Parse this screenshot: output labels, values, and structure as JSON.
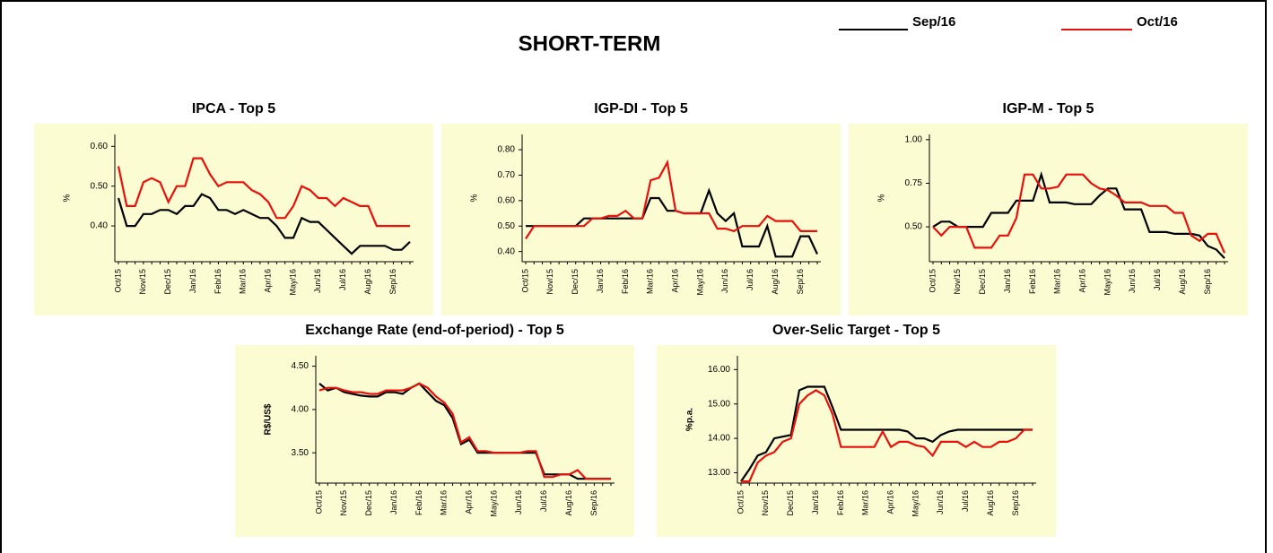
{
  "title": "SHORT-TERM",
  "chart_data": [
    {
      "type": "line",
      "title": "IPCA - Top 5",
      "ylabel": "%",
      "categories": [
        "Oct/15",
        null,
        null,
        "Nov/15",
        null,
        null,
        "Dec/15",
        null,
        null,
        "Jan/16",
        null,
        null,
        "Feb/16",
        null,
        null,
        "Mar/16",
        null,
        null,
        "Apr/16",
        null,
        null,
        "May/16",
        null,
        null,
        "Jun/16",
        null,
        null,
        "Jul/16",
        null,
        null,
        "Aug/16",
        null,
        null,
        "Sep/16",
        null,
        null
      ],
      "ylim": [
        0.31,
        0.63
      ],
      "yticks": [
        {
          "value": 0.4,
          "label": "0.40"
        },
        {
          "value": 0.5,
          "label": "0.50"
        },
        {
          "value": 0.6,
          "label": "0.60"
        }
      ],
      "series": [
        {
          "name": "Sep/16",
          "color": "#000000",
          "values": [
            0.47,
            0.4,
            0.4,
            0.43,
            0.43,
            0.44,
            0.44,
            0.43,
            0.45,
            0.45,
            0.48,
            0.47,
            0.44,
            0.44,
            0.43,
            0.44,
            0.43,
            0.42,
            0.42,
            0.4,
            0.37,
            0.37,
            0.42,
            0.41,
            0.41,
            0.39,
            0.37,
            0.35,
            0.33,
            0.35,
            0.35,
            0.35,
            0.35,
            0.34,
            0.34,
            0.36
          ]
        },
        {
          "name": "Oct/16",
          "color": "#e8100c",
          "values": [
            0.55,
            0.45,
            0.45,
            0.51,
            0.52,
            0.51,
            0.46,
            0.5,
            0.5,
            0.57,
            0.57,
            0.53,
            0.5,
            0.51,
            0.51,
            0.51,
            0.49,
            0.48,
            0.46,
            0.42,
            0.42,
            0.45,
            0.5,
            0.49,
            0.47,
            0.47,
            0.45,
            0.47,
            0.46,
            0.45,
            0.45,
            0.4,
            0.4,
            0.4,
            0.4,
            0.4
          ]
        }
      ]
    },
    {
      "type": "line",
      "title": "IGP-DI - Top 5",
      "ylabel": "%",
      "categories": [
        "Oct/15",
        null,
        null,
        "Nov/15",
        null,
        null,
        "Dec/15",
        null,
        null,
        "Jan/16",
        null,
        null,
        "Feb/16",
        null,
        null,
        "Mar/16",
        null,
        null,
        "Apr/16",
        null,
        null,
        "May/16",
        null,
        null,
        "Jun/16",
        null,
        null,
        "Jul/16",
        null,
        null,
        "Aug/16",
        null,
        null,
        "Sep/16",
        null,
        null
      ],
      "ylim": [
        0.36,
        0.86
      ],
      "yticks": [
        {
          "value": 0.4,
          "label": "0.40"
        },
        {
          "value": 0.5,
          "label": "0.50"
        },
        {
          "value": 0.6,
          "label": "0.60"
        },
        {
          "value": 0.7,
          "label": "0.70"
        },
        {
          "value": 0.8,
          "label": "0.80"
        }
      ],
      "series": [
        {
          "name": "Sep/16",
          "color": "#000000",
          "values": [
            0.5,
            0.5,
            0.5,
            0.5,
            0.5,
            0.5,
            0.5,
            0.53,
            0.53,
            0.53,
            0.53,
            0.53,
            0.53,
            0.53,
            0.53,
            0.61,
            0.61,
            0.56,
            0.56,
            0.55,
            0.55,
            0.55,
            0.64,
            0.55,
            0.52,
            0.55,
            0.42,
            0.42,
            0.42,
            0.5,
            0.38,
            0.38,
            0.38,
            0.46,
            0.46,
            0.39
          ]
        },
        {
          "name": "Oct/16",
          "color": "#e8100c",
          "values": [
            0.45,
            0.5,
            0.5,
            0.5,
            0.5,
            0.5,
            0.5,
            0.5,
            0.53,
            0.53,
            0.54,
            0.54,
            0.56,
            0.53,
            0.53,
            0.68,
            0.69,
            0.75,
            0.56,
            0.55,
            0.55,
            0.55,
            0.55,
            0.49,
            0.49,
            0.48,
            0.5,
            0.5,
            0.5,
            0.54,
            0.52,
            0.52,
            0.52,
            0.48,
            0.48,
            0.48
          ]
        }
      ]
    },
    {
      "type": "line",
      "title": "IGP-M - Top 5",
      "ylabel": "%",
      "categories": [
        "Oct/15",
        null,
        null,
        "Nov/15",
        null,
        null,
        "Dec/15",
        null,
        null,
        "Jan/16",
        null,
        null,
        "Feb/16",
        null,
        null,
        "Mar/16",
        null,
        null,
        "Apr/16",
        null,
        null,
        "May/16",
        null,
        null,
        "Jun/16",
        null,
        null,
        "Jul/16",
        null,
        null,
        "Aug/16",
        null,
        null,
        "Sep/16",
        null,
        null
      ],
      "ylim": [
        0.3,
        1.03
      ],
      "yticks": [
        {
          "value": 0.5,
          "label": "0.50"
        },
        {
          "value": 0.75,
          "label": "0.75"
        },
        {
          "value": 1.0,
          "label": "1.00"
        }
      ],
      "series": [
        {
          "name": "Sep/16",
          "color": "#000000",
          "values": [
            0.5,
            0.53,
            0.53,
            0.5,
            0.5,
            0.5,
            0.5,
            0.58,
            0.58,
            0.58,
            0.65,
            0.65,
            0.65,
            0.8,
            0.64,
            0.64,
            0.64,
            0.63,
            0.63,
            0.63,
            0.68,
            0.72,
            0.72,
            0.6,
            0.6,
            0.6,
            0.47,
            0.47,
            0.47,
            0.46,
            0.46,
            0.46,
            0.45,
            0.39,
            0.37,
            0.32
          ]
        },
        {
          "name": "Oct/16",
          "color": "#e8100c",
          "values": [
            0.5,
            0.45,
            0.5,
            0.5,
            0.5,
            0.38,
            0.38,
            0.38,
            0.45,
            0.45,
            0.55,
            0.8,
            0.8,
            0.72,
            0.72,
            0.73,
            0.8,
            0.8,
            0.8,
            0.75,
            0.72,
            0.71,
            0.68,
            0.64,
            0.64,
            0.64,
            0.62,
            0.62,
            0.62,
            0.58,
            0.58,
            0.45,
            0.42,
            0.46,
            0.46,
            0.35
          ]
        }
      ]
    },
    {
      "type": "line",
      "title": "Exchange Rate (end-of-period) - Top 5",
      "ylabel": "R$/US$",
      "categories": [
        "Oct/15",
        null,
        null,
        "Nov/15",
        null,
        null,
        "Dec/15",
        null,
        null,
        "Jan/16",
        null,
        null,
        "Feb/16",
        null,
        null,
        "Mar/16",
        null,
        null,
        "Apr/16",
        null,
        null,
        "May/16",
        null,
        null,
        "Jun/16",
        null,
        null,
        "Jul/16",
        null,
        null,
        "Aug/16",
        null,
        null,
        "Sep/16",
        null,
        null
      ],
      "ylim": [
        3.15,
        4.62
      ],
      "yticks": [
        {
          "value": 3.5,
          "label": "3.50"
        },
        {
          "value": 4.0,
          "label": "4.00"
        },
        {
          "value": 4.5,
          "label": "4.50"
        }
      ],
      "series": [
        {
          "name": "Sep/16",
          "color": "#000000",
          "values": [
            4.3,
            4.22,
            4.25,
            4.2,
            4.18,
            4.16,
            4.15,
            4.15,
            4.2,
            4.2,
            4.18,
            4.25,
            4.3,
            4.2,
            4.1,
            4.05,
            3.9,
            3.6,
            3.65,
            3.5,
            3.5,
            3.5,
            3.5,
            3.5,
            3.5,
            3.5,
            3.5,
            3.25,
            3.25,
            3.25,
            3.25,
            3.2,
            3.2,
            3.2,
            3.2,
            3.2
          ]
        },
        {
          "name": "Oct/16",
          "color": "#e8100c",
          "values": [
            4.22,
            4.25,
            4.25,
            4.22,
            4.2,
            4.2,
            4.18,
            4.18,
            4.22,
            4.22,
            4.22,
            4.25,
            4.3,
            4.25,
            4.15,
            4.08,
            3.95,
            3.62,
            3.68,
            3.52,
            3.52,
            3.5,
            3.5,
            3.5,
            3.5,
            3.52,
            3.52,
            3.22,
            3.22,
            3.25,
            3.25,
            3.3,
            3.2,
            3.2,
            3.2,
            3.2
          ]
        }
      ]
    },
    {
      "type": "line",
      "title": "Over-Selic Target - Top 5",
      "ylabel": "%p.a.",
      "categories": [
        "Oct/15",
        null,
        null,
        "Nov/15",
        null,
        null,
        "Dec/15",
        null,
        null,
        "Jan/16",
        null,
        null,
        "Feb/16",
        null,
        null,
        "Mar/16",
        null,
        null,
        "Apr/16",
        null,
        null,
        "May/16",
        null,
        null,
        "Jun/16",
        null,
        null,
        "Jul/16",
        null,
        null,
        "Aug/16",
        null,
        null,
        "Sep/16",
        null,
        null
      ],
      "ylim": [
        12.7,
        16.4
      ],
      "yticks": [
        {
          "value": 13,
          "label": "13.00"
        },
        {
          "value": 14,
          "label": "14.00"
        },
        {
          "value": 15,
          "label": "15.00"
        },
        {
          "value": 16,
          "label": "16.00"
        }
      ],
      "series": [
        {
          "name": "Sep/16",
          "color": "#000000",
          "values": [
            12.75,
            13.1,
            13.5,
            13.6,
            14.0,
            14.05,
            14.1,
            15.4,
            15.5,
            15.5,
            15.5,
            14.9,
            14.25,
            14.25,
            14.25,
            14.25,
            14.25,
            14.25,
            14.25,
            14.25,
            14.2,
            14.0,
            14.0,
            13.9,
            14.1,
            14.2,
            14.25,
            14.25,
            14.25,
            14.25,
            14.25,
            14.25,
            14.25,
            14.25,
            14.25,
            14.25
          ]
        },
        {
          "name": "Oct/16",
          "color": "#e8100c",
          "values": [
            12.75,
            12.75,
            13.3,
            13.5,
            13.6,
            13.9,
            14.0,
            15.0,
            15.25,
            15.4,
            15.25,
            14.7,
            13.75,
            13.75,
            13.75,
            13.75,
            13.75,
            14.2,
            13.75,
            13.9,
            13.9,
            13.8,
            13.75,
            13.5,
            13.9,
            13.9,
            13.9,
            13.75,
            13.9,
            13.75,
            13.75,
            13.9,
            13.9,
            14.0,
            14.25,
            14.25
          ]
        }
      ]
    }
  ]
}
